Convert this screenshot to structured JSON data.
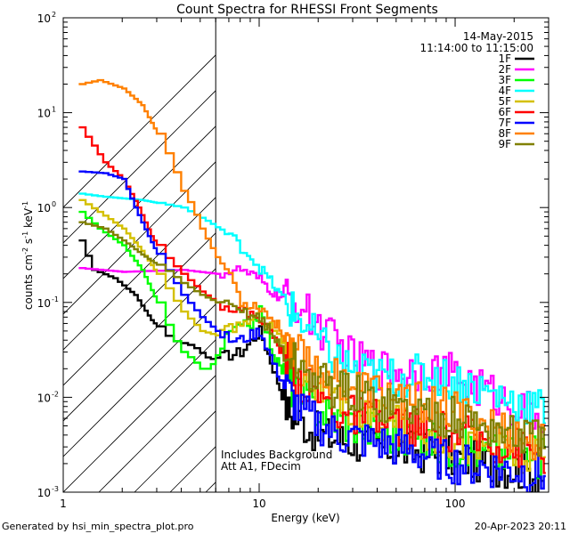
{
  "chart_data": {
    "type": "line",
    "title": "Count Spectra for RHESSI Front Segments",
    "xlabel": "Energy (keV)",
    "ylabel_main": "counts cm",
    "ylabel_exp1": "-2",
    "ylabel_mid1": " s",
    "ylabel_exp2": "-1",
    "ylabel_mid2": " keV",
    "ylabel_exp3": "-1",
    "xscale": "log",
    "yscale": "log",
    "xlim": [
      1,
      300
    ],
    "ylim": [
      0.001,
      100
    ],
    "x_tick_labels": [
      {
        "value": 1,
        "label": "1"
      },
      {
        "value": 10,
        "label": "10"
      },
      {
        "value": 100,
        "label": "100"
      }
    ],
    "y_tick_labels": [
      {
        "value": 100,
        "base": "10",
        "exp": "2"
      },
      {
        "value": 10,
        "base": "10",
        "exp": "1"
      },
      {
        "value": 1,
        "base": "10",
        "exp": "0"
      },
      {
        "value": 0.1,
        "base": "10",
        "exp": "-1"
      },
      {
        "value": 0.01,
        "base": "10",
        "exp": "-2"
      },
      {
        "value": 0.001,
        "base": "10",
        "exp": "-3"
      }
    ],
    "date": "14-May-2015",
    "time_range": "11:14:00 to 11:15:00",
    "hatch_region_max_energy": 6,
    "annotation_1": "Includes Background",
    "annotation_2": "Att A1, FDecim",
    "footer_left": "Generated by hsi_min_spectra_plot.pro",
    "footer_right": "20-Apr-2023 20:11",
    "series": [
      {
        "name": "1F",
        "color": "#000000",
        "anchors": [
          [
            1.2,
            0.45
          ],
          [
            1.4,
            0.22
          ],
          [
            1.8,
            0.18
          ],
          [
            2.3,
            0.12
          ],
          [
            2.8,
            0.065
          ],
          [
            3.5,
            0.04
          ],
          [
            4.5,
            0.035
          ],
          [
            5.5,
            0.025
          ],
          [
            8,
            0.03
          ],
          [
            10,
            0.05
          ],
          [
            14,
            0.007
          ],
          [
            20,
            0.004
          ],
          [
            40,
            0.003
          ],
          [
            80,
            0.0025
          ],
          [
            150,
            0.002
          ],
          [
            280,
            0.0015
          ]
        ]
      },
      {
        "name": "2F",
        "color": "#ff00ff",
        "anchors": [
          [
            1.2,
            0.23
          ],
          [
            2,
            0.21
          ],
          [
            4,
            0.22
          ],
          [
            6,
            0.2
          ],
          [
            8,
            0.22
          ],
          [
            10,
            0.17
          ],
          [
            12,
            0.12
          ],
          [
            15,
            0.1
          ],
          [
            18,
            0.07
          ],
          [
            22,
            0.045
          ],
          [
            30,
            0.025
          ],
          [
            40,
            0.02
          ],
          [
            55,
            0.019
          ],
          [
            70,
            0.02
          ],
          [
            90,
            0.018
          ],
          [
            110,
            0.015
          ],
          [
            140,
            0.012
          ],
          [
            180,
            0.009
          ],
          [
            230,
            0.007
          ],
          [
            290,
            0.0058
          ]
        ]
      },
      {
        "name": "3F",
        "color": "#00ff00",
        "anchors": [
          [
            1.2,
            0.9
          ],
          [
            1.5,
            0.6
          ],
          [
            2,
            0.4
          ],
          [
            2.5,
            0.22
          ],
          [
            3,
            0.1
          ],
          [
            3.5,
            0.045
          ],
          [
            4,
            0.03
          ],
          [
            4.5,
            0.025
          ],
          [
            5,
            0.02
          ],
          [
            5.5,
            0.02
          ],
          [
            7,
            0.05
          ],
          [
            9,
            0.06
          ],
          [
            10,
            0.08
          ],
          [
            12,
            0.025
          ],
          [
            16,
            0.01
          ],
          [
            25,
            0.006
          ],
          [
            50,
            0.004
          ],
          [
            100,
            0.003
          ],
          [
            200,
            0.0025
          ],
          [
            290,
            0.0022
          ]
        ]
      },
      {
        "name": "4F",
        "color": "#00ffff",
        "anchors": [
          [
            1.2,
            1.4
          ],
          [
            1.6,
            1.3
          ],
          [
            2.5,
            1.2
          ],
          [
            4,
            1
          ],
          [
            5.5,
            0.7
          ],
          [
            7,
            0.5
          ],
          [
            9,
            0.3
          ],
          [
            11,
            0.18
          ],
          [
            14,
            0.09
          ],
          [
            18,
            0.05
          ],
          [
            22,
            0.03
          ],
          [
            30,
            0.019
          ],
          [
            45,
            0.016
          ],
          [
            60,
            0.017
          ],
          [
            80,
            0.017
          ],
          [
            110,
            0.014
          ],
          [
            150,
            0.011
          ],
          [
            200,
            0.009
          ],
          [
            250,
            0.008
          ],
          [
            290,
            0.007
          ]
        ]
      },
      {
        "name": "5F",
        "color": "#d4c000",
        "anchors": [
          [
            1.2,
            1.2
          ],
          [
            1.5,
            0.9
          ],
          [
            2,
            0.6
          ],
          [
            2.5,
            0.35
          ],
          [
            3,
            0.2
          ],
          [
            3.5,
            0.12
          ],
          [
            4,
            0.08
          ],
          [
            5,
            0.05
          ],
          [
            6,
            0.045
          ],
          [
            8,
            0.06
          ],
          [
            10,
            0.07
          ],
          [
            12,
            0.05
          ],
          [
            16,
            0.02
          ],
          [
            25,
            0.008
          ],
          [
            50,
            0.005
          ],
          [
            100,
            0.0035
          ],
          [
            200,
            0.0025
          ],
          [
            290,
            0.002
          ]
        ]
      },
      {
        "name": "6F",
        "color": "#ff0000",
        "anchors": [
          [
            1.2,
            7
          ],
          [
            1.4,
            4.5
          ],
          [
            1.6,
            3
          ],
          [
            2,
            2
          ],
          [
            2.4,
            1
          ],
          [
            2.8,
            0.5
          ],
          [
            3.3,
            0.3
          ],
          [
            4,
            0.2
          ],
          [
            5,
            0.13
          ],
          [
            6,
            0.1
          ],
          [
            8,
            0.08
          ],
          [
            10,
            0.07
          ],
          [
            12,
            0.04
          ],
          [
            16,
            0.015
          ],
          [
            25,
            0.007
          ],
          [
            50,
            0.005
          ],
          [
            100,
            0.004
          ],
          [
            200,
            0.003
          ],
          [
            290,
            0.0025
          ]
        ]
      },
      {
        "name": "7F",
        "color": "#0000ff",
        "anchors": [
          [
            1.2,
            2.4
          ],
          [
            1.6,
            2.3
          ],
          [
            2,
            2
          ],
          [
            2.3,
            1
          ],
          [
            2.7,
            0.5
          ],
          [
            3.2,
            0.25
          ],
          [
            4,
            0.12
          ],
          [
            5,
            0.07
          ],
          [
            6,
            0.05
          ],
          [
            7,
            0.04
          ],
          [
            8,
            0.04
          ],
          [
            10,
            0.05
          ],
          [
            12,
            0.02
          ],
          [
            16,
            0.007
          ],
          [
            25,
            0.004
          ],
          [
            50,
            0.003
          ],
          [
            100,
            0.002
          ],
          [
            200,
            0.0017
          ],
          [
            290,
            0.0015
          ]
        ]
      },
      {
        "name": "8F",
        "color": "#ff8000",
        "anchors": [
          [
            1.2,
            20
          ],
          [
            1.5,
            22
          ],
          [
            2,
            18
          ],
          [
            2.5,
            12
          ],
          [
            3,
            6
          ],
          [
            3.5,
            3
          ],
          [
            4,
            1.5
          ],
          [
            4.5,
            1
          ],
          [
            5,
            0.6
          ],
          [
            6,
            0.3
          ],
          [
            7,
            0.2
          ],
          [
            8,
            0.1
          ],
          [
            10,
            0.09
          ],
          [
            12,
            0.06
          ],
          [
            16,
            0.03
          ],
          [
            20,
            0.02
          ],
          [
            30,
            0.013
          ],
          [
            50,
            0.01
          ],
          [
            80,
            0.008
          ],
          [
            120,
            0.006
          ],
          [
            200,
            0.004
          ],
          [
            290,
            0.003
          ]
        ]
      },
      {
        "name": "9F",
        "color": "#808000",
        "anchors": [
          [
            1.2,
            0.7
          ],
          [
            1.6,
            0.6
          ],
          [
            2,
            0.45
          ],
          [
            2.5,
            0.32
          ],
          [
            3,
            0.25
          ],
          [
            3.5,
            0.2
          ],
          [
            4,
            0.16
          ],
          [
            5,
            0.12
          ],
          [
            6,
            0.1
          ],
          [
            8,
            0.08
          ],
          [
            10,
            0.07
          ],
          [
            12,
            0.04
          ],
          [
            16,
            0.02
          ],
          [
            25,
            0.012
          ],
          [
            50,
            0.008
          ],
          [
            100,
            0.006
          ],
          [
            200,
            0.004
          ],
          [
            290,
            0.0035
          ]
        ]
      }
    ]
  }
}
